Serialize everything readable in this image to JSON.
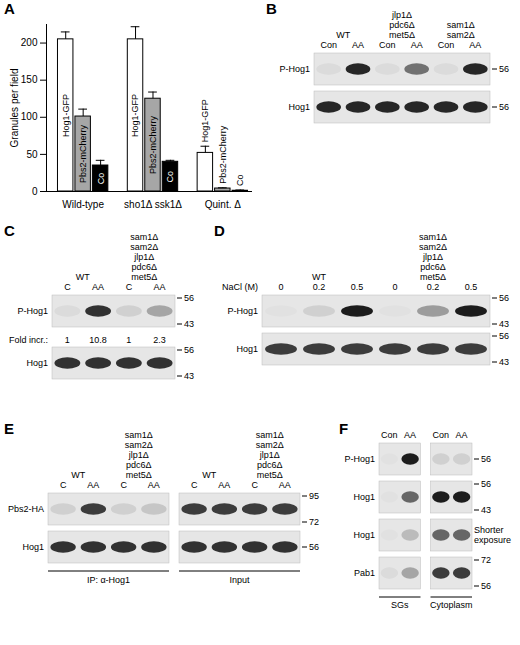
{
  "chart_data": {
    "type": "bar",
    "title": "A",
    "categories": [
      "Wild-type",
      "sho1Δ ssk1Δ",
      "Quint. Δ"
    ],
    "ylabel": "Granules per field",
    "ylim": [
      0,
      225
    ],
    "yticks": [
      0,
      50,
      100,
      150,
      200
    ],
    "series": [
      {
        "name": "Hog1-GFP",
        "color": "#ffffff",
        "values": [
          205,
          205,
          52
        ],
        "errors": [
          10,
          17,
          9
        ]
      },
      {
        "name": "Pbs2-mCherry",
        "color": "#a6a6a6",
        "values": [
          101,
          125,
          4
        ],
        "errors": [
          10,
          9,
          1
        ]
      },
      {
        "name": "Co",
        "color": "#000000",
        "values": [
          35,
          40,
          1
        ],
        "errors": [
          7,
          2,
          1
        ]
      }
    ]
  },
  "blots": [
    {
      "label": "B",
      "blocks": [
        {
          "groups": [
            {
              "name": [
                "WT"
              ],
              "lanes": [
                "Con",
                "AA"
              ]
            },
            {
              "name": [
                "jlp1Δ",
                "pdc6Δ",
                "met5Δ"
              ],
              "lanes": [
                "Con",
                "AA"
              ]
            },
            {
              "name": [
                "sam1Δ",
                "sam2Δ"
              ],
              "lanes": [
                "Con",
                "AA"
              ]
            }
          ]
        }
      ],
      "rows": [
        {
          "name": "P-Hog1",
          "markers": [
            56
          ],
          "signal": [
            [
              0.05,
              0.9,
              0.05,
              0.55,
              0.05,
              0.9
            ]
          ]
        },
        {
          "name": "Hog1",
          "markers": [
            56
          ],
          "signal": [
            [
              0.9,
              0.9,
              0.9,
              0.9,
              0.9,
              0.9
            ]
          ]
        }
      ]
    },
    {
      "label": "C",
      "blocks": [
        {
          "groups": [
            {
              "name": [
                "WT"
              ],
              "lanes": [
                "C",
                "AA"
              ]
            },
            {
              "name": [
                "sam1Δ",
                "sam2Δ",
                "jlp1Δ",
                "pdc6Δ",
                "met5Δ"
              ],
              "lanes": [
                "C",
                "AA"
              ]
            }
          ]
        }
      ],
      "rows": [
        {
          "name": "P-Hog1",
          "markers": [
            56,
            43
          ],
          "signal": [
            [
              0.05,
              0.85,
              0.1,
              0.3
            ]
          ]
        },
        {
          "name": "Fold incr.:",
          "values": [
            [
              1,
              10.8,
              1,
              2.3
            ]
          ]
        },
        {
          "name": "Hog1",
          "markers": [
            56,
            43
          ],
          "signal": [
            [
              0.85,
              0.85,
              0.85,
              0.85
            ]
          ]
        }
      ]
    },
    {
      "label": "D",
      "lane_title": "NaCl (M)",
      "blocks": [
        {
          "groups": [
            {
              "name": [
                "WT"
              ],
              "lanes": [
                "0",
                "0.2",
                "0.5"
              ]
            },
            {
              "name": [
                "sam1Δ",
                "sam2Δ",
                "jlp1Δ",
                "pdc6Δ",
                "met5Δ"
              ],
              "lanes": [
                "0",
                "0.2",
                "0.5"
              ]
            }
          ]
        }
      ],
      "rows": [
        {
          "name": "P-Hog1",
          "markers": [
            56,
            43
          ],
          "signal": [
            [
              0.02,
              0.1,
              0.95,
              0.02,
              0.35,
              0.95
            ]
          ]
        },
        {
          "name": "Hog1",
          "markers": [
            56,
            43
          ],
          "signal": [
            [
              0.8,
              0.8,
              0.8,
              0.8,
              0.8,
              0.8
            ]
          ]
        }
      ]
    },
    {
      "label": "E",
      "blocks": [
        {
          "caption": "IP: α-Hog1",
          "groups": [
            {
              "name": [
                "WT"
              ],
              "lanes": [
                "C",
                "AA"
              ]
            },
            {
              "name": [
                "sam1Δ",
                "sam2Δ",
                "jlp1Δ",
                "pdc6Δ",
                "met5Δ"
              ],
              "lanes": [
                "C",
                "AA"
              ]
            }
          ]
        },
        {
          "caption": "Input",
          "groups": [
            {
              "name": [
                "WT"
              ],
              "lanes": [
                "C",
                "AA"
              ]
            },
            {
              "name": [
                "sam1Δ",
                "sam2Δ",
                "jlp1Δ",
                "pdc6Δ",
                "met5Δ"
              ],
              "lanes": [
                "C",
                "AA"
              ]
            }
          ]
        }
      ],
      "rows": [
        {
          "name": "Pbs2-HA",
          "markers": [
            95,
            72
          ],
          "signal": [
            [
              0.1,
              0.8,
              0.1,
              0.15
            ],
            [
              0.8,
              0.8,
              0.8,
              0.8
            ]
          ]
        },
        {
          "name": "Hog1",
          "markers": [
            56
          ],
          "signal": [
            [
              0.85,
              0.85,
              0.85,
              0.85
            ],
            [
              0.85,
              0.85,
              0.85,
              0.85
            ]
          ]
        }
      ]
    },
    {
      "label": "F",
      "blocks": [
        {
          "groups": [
            {
              "name": [
                "SGs"
              ],
              "lanes": [
                "Con",
                "AA"
              ]
            }
          ]
        },
        {
          "groups": [
            {
              "name": [
                "Cytoplasm"
              ],
              "lanes": [
                "Con",
                "AA"
              ]
            }
          ]
        }
      ],
      "rows": [
        {
          "name": "P-Hog1",
          "markers": [
            56
          ],
          "signal": [
            [
              0.02,
              0.95
            ],
            [
              0.1,
              0.1
            ]
          ]
        },
        {
          "name": "Hog1",
          "markers": [
            56,
            43
          ],
          "signal": [
            [
              0.02,
              0.6
            ],
            [
              0.95,
              0.95
            ]
          ]
        },
        {
          "name": "Hog1",
          "note": [
            "Shorter",
            "exposure"
          ],
          "signal": [
            [
              0.02,
              0.2
            ],
            [
              0.6,
              0.6
            ]
          ]
        },
        {
          "name": "Pab1",
          "markers": [
            72,
            56
          ],
          "signal": [
            [
              0.05,
              0.3
            ],
            [
              0.8,
              0.8
            ]
          ]
        }
      ]
    }
  ]
}
